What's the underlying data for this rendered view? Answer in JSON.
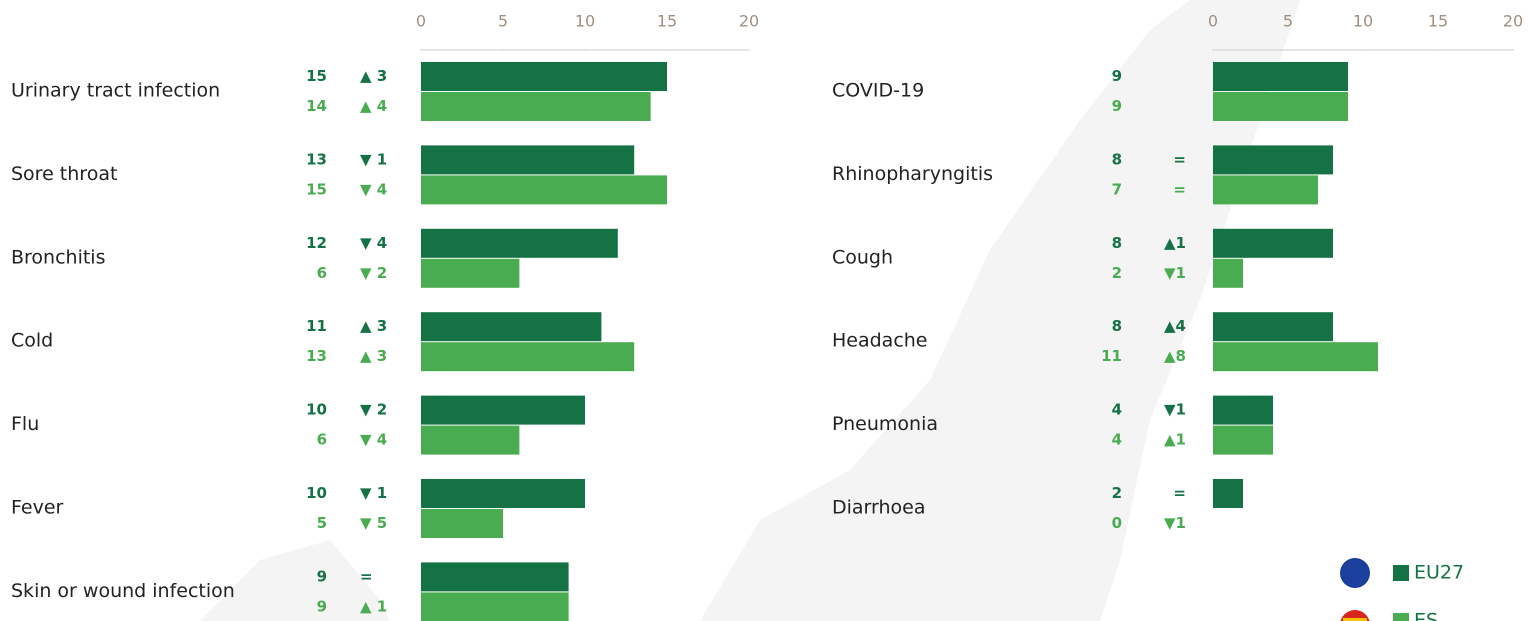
{
  "chart_data": [
    {
      "type": "bar",
      "categories": [
        "Urinary tract infection",
        "Sore throat",
        "Bronchitis",
        "Cold",
        "Flu",
        "Fever",
        "Skin or wound infection"
      ],
      "series": [
        {
          "color": "#147245",
          "values": [
            15,
            13,
            12,
            11,
            10,
            10,
            9
          ],
          "changes": [
            "▲ 3",
            "▼ 1",
            "▼ 4",
            "▲ 3",
            "▼ 2",
            "▼ 1",
            "="
          ]
        },
        {
          "color": "#4aac50",
          "values": [
            14,
            15,
            6,
            13,
            6,
            5,
            9
          ],
          "changes": [
            "▲ 4",
            "▼ 4",
            "▼ 2",
            "▲ 3",
            "▼ 4",
            "▼ 5",
            "▲ 1"
          ]
        }
      ],
      "xlim": [
        0,
        20
      ],
      "xticks": [
        0,
        5,
        10,
        15,
        20
      ]
    },
    {
      "type": "bar",
      "categories": [
        "COVID-19",
        "Rhinopharyngitis",
        "Cough",
        "Headache",
        "Pneumonia",
        "Diarrhoea"
      ],
      "series": [
        {
          "name": "EU27",
          "color": "#147245",
          "values": [
            9,
            8,
            8,
            8,
            4,
            2
          ],
          "changes": [
            null,
            "=",
            "▲1",
            "▲4",
            "▼1",
            "="
          ]
        },
        {
          "name": "ES",
          "color": "#4aac50",
          "values": [
            9,
            7,
            2,
            11,
            4,
            0
          ],
          "changes": [
            null,
            "=",
            "▼1",
            "▲8",
            "▲1",
            "▼1"
          ]
        }
      ],
      "xlim": [
        0,
        20
      ],
      "xticks": [
        0,
        5,
        10,
        15,
        20
      ]
    }
  ]
}
